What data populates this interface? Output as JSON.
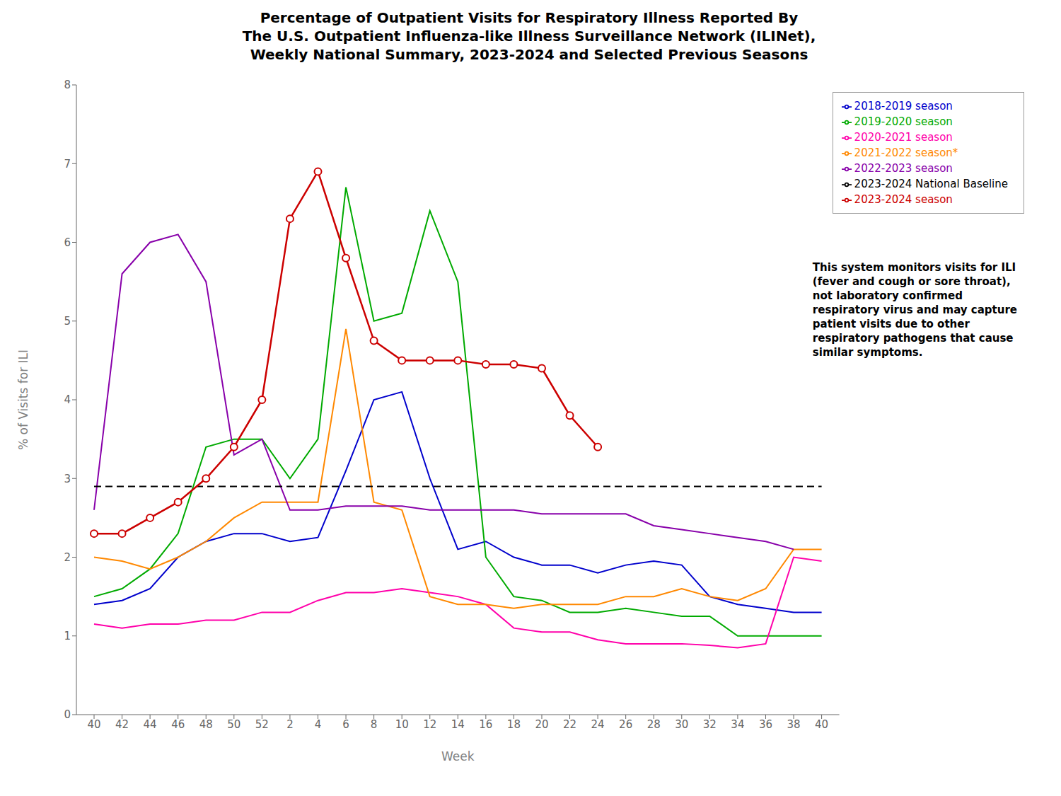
{
  "chart_data": {
    "type": "line",
    "title": "Percentage of Outpatient Visits for Respiratory Illness Reported By\nThe U.S. Outpatient Influenza-like Illness Surveillance Network (ILINet),\nWeekly National Summary, 2023-2024 and Selected Previous Seasons",
    "xlabel": "Week",
    "ylabel": "% of Visits for ILI",
    "categories": [
      "40",
      "42",
      "44",
      "46",
      "48",
      "50",
      "52",
      "2",
      "4",
      "6",
      "8",
      "10",
      "12",
      "14",
      "16",
      "18",
      "20",
      "22",
      "24",
      "26",
      "28",
      "30",
      "32",
      "34",
      "36",
      "38",
      "40"
    ],
    "ylim": [
      0,
      8
    ],
    "yticks": [
      0,
      1,
      2,
      3,
      4,
      5,
      6,
      7,
      8
    ],
    "grid": false,
    "legend": "upper right",
    "annotation": "This system monitors visits for ILI\n(fever and cough or sore throat),\nnot laboratory confirmed\nrespiratory virus and may capture\npatient visits due to other\nrespiratory pathogens that cause\nsimilar symptoms.",
    "series": [
      {
        "name": "2018-2019 season",
        "color": "#0000cc",
        "values": [
          1.4,
          1.45,
          1.6,
          2.0,
          2.2,
          2.3,
          2.3,
          2.2,
          2.25,
          3.1,
          4.0,
          4.1,
          3.0,
          2.1,
          2.2,
          2.0,
          1.9,
          1.9,
          1.8,
          1.9,
          1.95,
          1.9,
          1.5,
          1.4,
          1.35,
          1.3,
          1.3
        ]
      },
      {
        "name": "2019-2020 season",
        "color": "#00aa00",
        "values": [
          1.5,
          1.6,
          1.85,
          2.3,
          3.4,
          3.5,
          3.5,
          3.0,
          3.5,
          6.7,
          5.0,
          5.1,
          6.4,
          5.5,
          2.0,
          1.5,
          1.45,
          1.3,
          1.3,
          1.35,
          1.3,
          1.25,
          1.25,
          1.0,
          1.0,
          1.0,
          1.0
        ]
      },
      {
        "name": "2020-2021 season",
        "color": "#ff00aa",
        "values": [
          1.15,
          1.1,
          1.15,
          1.15,
          1.2,
          1.2,
          1.3,
          1.3,
          1.45,
          1.55,
          1.55,
          1.6,
          1.55,
          1.5,
          1.4,
          1.1,
          1.05,
          1.05,
          0.95,
          0.9,
          0.9,
          0.9,
          0.88,
          0.85,
          0.9,
          2.0,
          1.95
        ]
      },
      {
        "name": "2021-2022 season*",
        "color": "#ff8800",
        "values": [
          2.0,
          1.95,
          1.85,
          2.0,
          2.2,
          2.5,
          2.7,
          2.7,
          2.7,
          4.9,
          2.7,
          2.6,
          1.5,
          1.4,
          1.4,
          1.35,
          1.4,
          1.4,
          1.4,
          1.5,
          1.5,
          1.6,
          1.5,
          1.45,
          1.6,
          2.1,
          2.1
        ]
      },
      {
        "name": "2022-2023 season",
        "color": "#8800aa",
        "values": [
          2.6,
          5.6,
          6.0,
          6.1,
          5.5,
          3.3,
          3.5,
          2.6,
          2.6,
          2.65,
          2.65,
          2.65,
          2.6,
          2.6,
          2.6,
          2.6,
          2.55,
          2.55,
          2.55,
          2.55,
          2.4,
          2.35,
          2.3,
          2.25,
          2.2,
          2.1,
          null
        ]
      },
      {
        "name": "2023-2024 National Baseline",
        "color": "#000000",
        "line_style": "dashed",
        "values": [
          2.9,
          2.9,
          2.9,
          2.9,
          2.9,
          2.9,
          2.9,
          2.9,
          2.9,
          2.9,
          2.9,
          2.9,
          2.9,
          2.9,
          2.9,
          2.9,
          2.9,
          2.9,
          2.9,
          2.9,
          2.9,
          2.9,
          2.9,
          2.9,
          2.9,
          2.9,
          2.9
        ]
      },
      {
        "name": "2023-2024 season",
        "color": "#cc0000",
        "marker": "circle",
        "values": [
          2.3,
          2.3,
          2.5,
          2.7,
          3.0,
          3.4,
          4.0,
          6.3,
          6.9,
          5.8,
          4.75,
          4.5,
          4.5,
          4.5,
          4.45,
          4.45,
          4.4,
          3.8,
          3.4,
          null,
          null,
          null,
          null,
          null,
          null,
          null,
          null
        ]
      }
    ]
  }
}
